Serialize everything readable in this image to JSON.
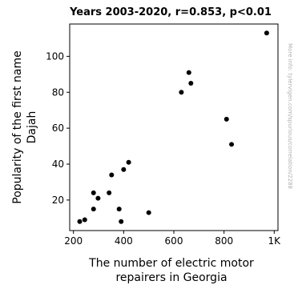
{
  "chart_data": {
    "type": "scatter",
    "title": "Years 2003-2020, r=0.853, p<0.01",
    "xlabel_lines": [
      "The number of electric motor",
      "repairers in Georgia"
    ],
    "ylabel_lines": [
      "Popularity of the first name",
      "Dajah"
    ],
    "side_note": "More info: tylervigen.com/spurious/correlation/2288",
    "xlim": [
      185,
      1015
    ],
    "ylim": [
      3,
      118
    ],
    "x_ticks": [
      200,
      400,
      600,
      800,
      1000
    ],
    "x_tick_labels": [
      "200",
      "400",
      "600",
      "800",
      "1K"
    ],
    "y_ticks": [
      20,
      40,
      60,
      80,
      100
    ],
    "y_tick_labels": [
      "20",
      "40",
      "60",
      "80",
      "100"
    ],
    "grid": false,
    "marker_color": "#000000",
    "points": [
      {
        "x": 225,
        "y": 8
      },
      {
        "x": 245,
        "y": 9
      },
      {
        "x": 280,
        "y": 24
      },
      {
        "x": 280,
        "y": 15
      },
      {
        "x": 298,
        "y": 21
      },
      {
        "x": 342,
        "y": 24
      },
      {
        "x": 352,
        "y": 34
      },
      {
        "x": 382,
        "y": 15
      },
      {
        "x": 390,
        "y": 8
      },
      {
        "x": 400,
        "y": 37
      },
      {
        "x": 420,
        "y": 41
      },
      {
        "x": 500,
        "y": 13
      },
      {
        "x": 630,
        "y": 80
      },
      {
        "x": 660,
        "y": 91
      },
      {
        "x": 668,
        "y": 85
      },
      {
        "x": 810,
        "y": 65
      },
      {
        "x": 830,
        "y": 51
      },
      {
        "x": 970,
        "y": 113
      }
    ]
  }
}
